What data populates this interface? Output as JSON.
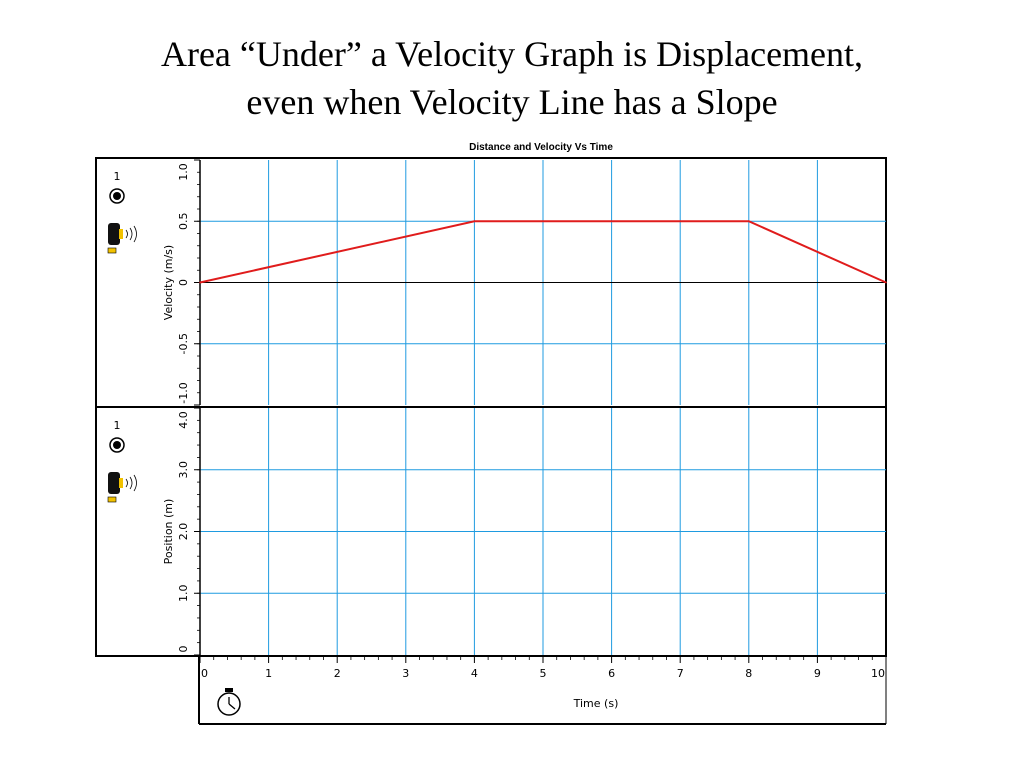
{
  "slide": {
    "title_line1": "Area “Under” a Velocity Graph is Displacement,",
    "title_line2": "even when Velocity Line has a Slope"
  },
  "colors": {
    "grid": "#1f9be0",
    "velocity_line": "#e01c1c",
    "axis": "#000000",
    "sensor_accent": "#f2c200"
  },
  "icons": {
    "sensor_channel": "target-icon",
    "motion_sensor": "motion-detector-icon",
    "timer": "stopwatch-icon"
  },
  "sensor_channel_label": "1",
  "chart_data": [
    {
      "type": "line",
      "title": "Distance and Velocity Vs Time",
      "xlabel": "Time (s)",
      "ylabel": "Velocity (m/s)",
      "xlim": [
        0,
        10
      ],
      "ylim": [
        -1.0,
        1.0
      ],
      "x_ticks": [
        "0",
        "1",
        "2",
        "3",
        "4",
        "5",
        "6",
        "7",
        "8",
        "9",
        "10"
      ],
      "y_ticks": [
        "1.0",
        "0.5",
        "0",
        "-0.5",
        "-1.0"
      ],
      "grid": true,
      "series": [
        {
          "x": [
            0,
            4,
            8,
            10
          ],
          "y": [
            0,
            0.5,
            0.5,
            0
          ]
        }
      ]
    },
    {
      "type": "line",
      "xlabel": "Time (s)",
      "ylabel": "Position (m)",
      "xlim": [
        0,
        10
      ],
      "ylim": [
        0,
        4.0
      ],
      "x_ticks": [
        "0",
        "1",
        "2",
        "3",
        "4",
        "5",
        "6",
        "7",
        "8",
        "9",
        "10"
      ],
      "y_ticks": [
        "4.0",
        "3.0",
        "2.0",
        "1.0",
        "0"
      ],
      "grid": true,
      "series": []
    }
  ]
}
